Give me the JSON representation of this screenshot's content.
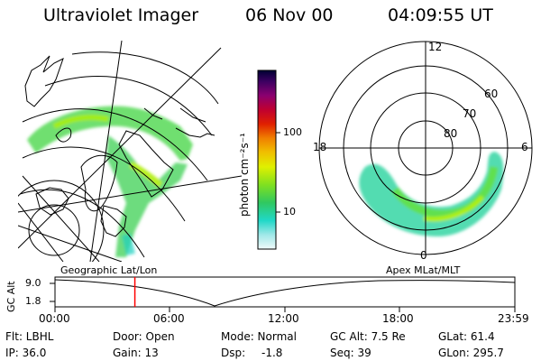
{
  "header": {
    "title": "Ultraviolet Imager",
    "date": "06 Nov 00",
    "time": "04:09:55 UT"
  },
  "colorbar": {
    "label": "photon cm⁻²s⁻¹",
    "ticks": [
      "100",
      "10"
    ],
    "colors": [
      "#000033",
      "#2a0050",
      "#6a007a",
      "#a0004a",
      "#d00000",
      "#f05000",
      "#f0a000",
      "#e8e000",
      "#b0f000",
      "#60e020",
      "#20c060",
      "#20d8c0",
      "#a0e8e8",
      "#e8f8f8"
    ]
  },
  "polar_plot": {
    "mlt_labels": [
      "12",
      "18",
      "6",
      "0"
    ],
    "lat_labels": [
      "60",
      "70",
      "80"
    ]
  },
  "panel_labels": {
    "left": "Geographic Lat/Lon",
    "right": "Apex MLat/MLT"
  },
  "altitude_plot": {
    "y_axis_label": "GC Alt",
    "y_ticks": [
      "9.0",
      "1.8"
    ],
    "x_ticks": [
      "00:00",
      "06:00",
      "12:00",
      "18:00",
      "23:59"
    ],
    "marker_time": "04:09:55",
    "marker_color": "#ff0000"
  },
  "info": {
    "filter": "Flt: LBHL",
    "door": "Door: Open",
    "mode": "Mode: Normal",
    "gc_alt": "GC Alt: 7.5 Re",
    "glat": "GLat: 61.4",
    "ip": "IP: 36.0",
    "gain": "Gain: 13",
    "dsp_label": "Dsp:",
    "dsp_value": "-1.8",
    "seq": "Seq: 39",
    "glon": "GLon: 295.7"
  }
}
